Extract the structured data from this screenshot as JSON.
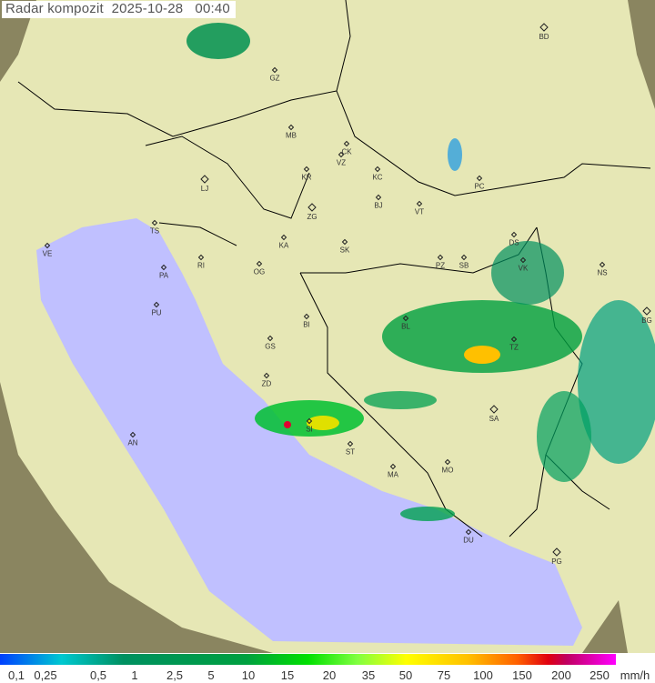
{
  "title": "Radar kompozit  2025-10-28   00:40",
  "legend": {
    "ticks": [
      "0,1",
      "0,25",
      "0,5",
      "1",
      "2,5",
      "5",
      "10",
      "15",
      "20",
      "35",
      "50",
      "75",
      "100",
      "150",
      "200",
      "250"
    ],
    "unit": "mm/h",
    "colors": [
      "#0040ff",
      "#00c8d0",
      "#009060",
      "#00a040",
      "#00e000",
      "#80ff40",
      "#ffff00",
      "#ffc000",
      "#ff6000",
      "#e00010",
      "#c00060",
      "#ff00ff"
    ]
  },
  "colors": {
    "sea": "#c0c0ff",
    "land": "#e8eab8",
    "outside": "#8a8560"
  },
  "cities": [
    "BD",
    "GZ",
    "MB",
    "CK",
    "VZ",
    "KR",
    "KC",
    "LJ",
    "PC",
    "BJ",
    "VT",
    "TS",
    "ZG",
    "VE",
    "KA",
    "SK",
    "RI",
    "DS",
    "PA",
    "OG",
    "PZ",
    "SB",
    "VK",
    "NS",
    "PU",
    "BI",
    "BL",
    "BG",
    "GS",
    "TZ",
    "ZD",
    "SI",
    "SA",
    "AN",
    "ST",
    "MO",
    "MA",
    "DU",
    "PG"
  ]
}
